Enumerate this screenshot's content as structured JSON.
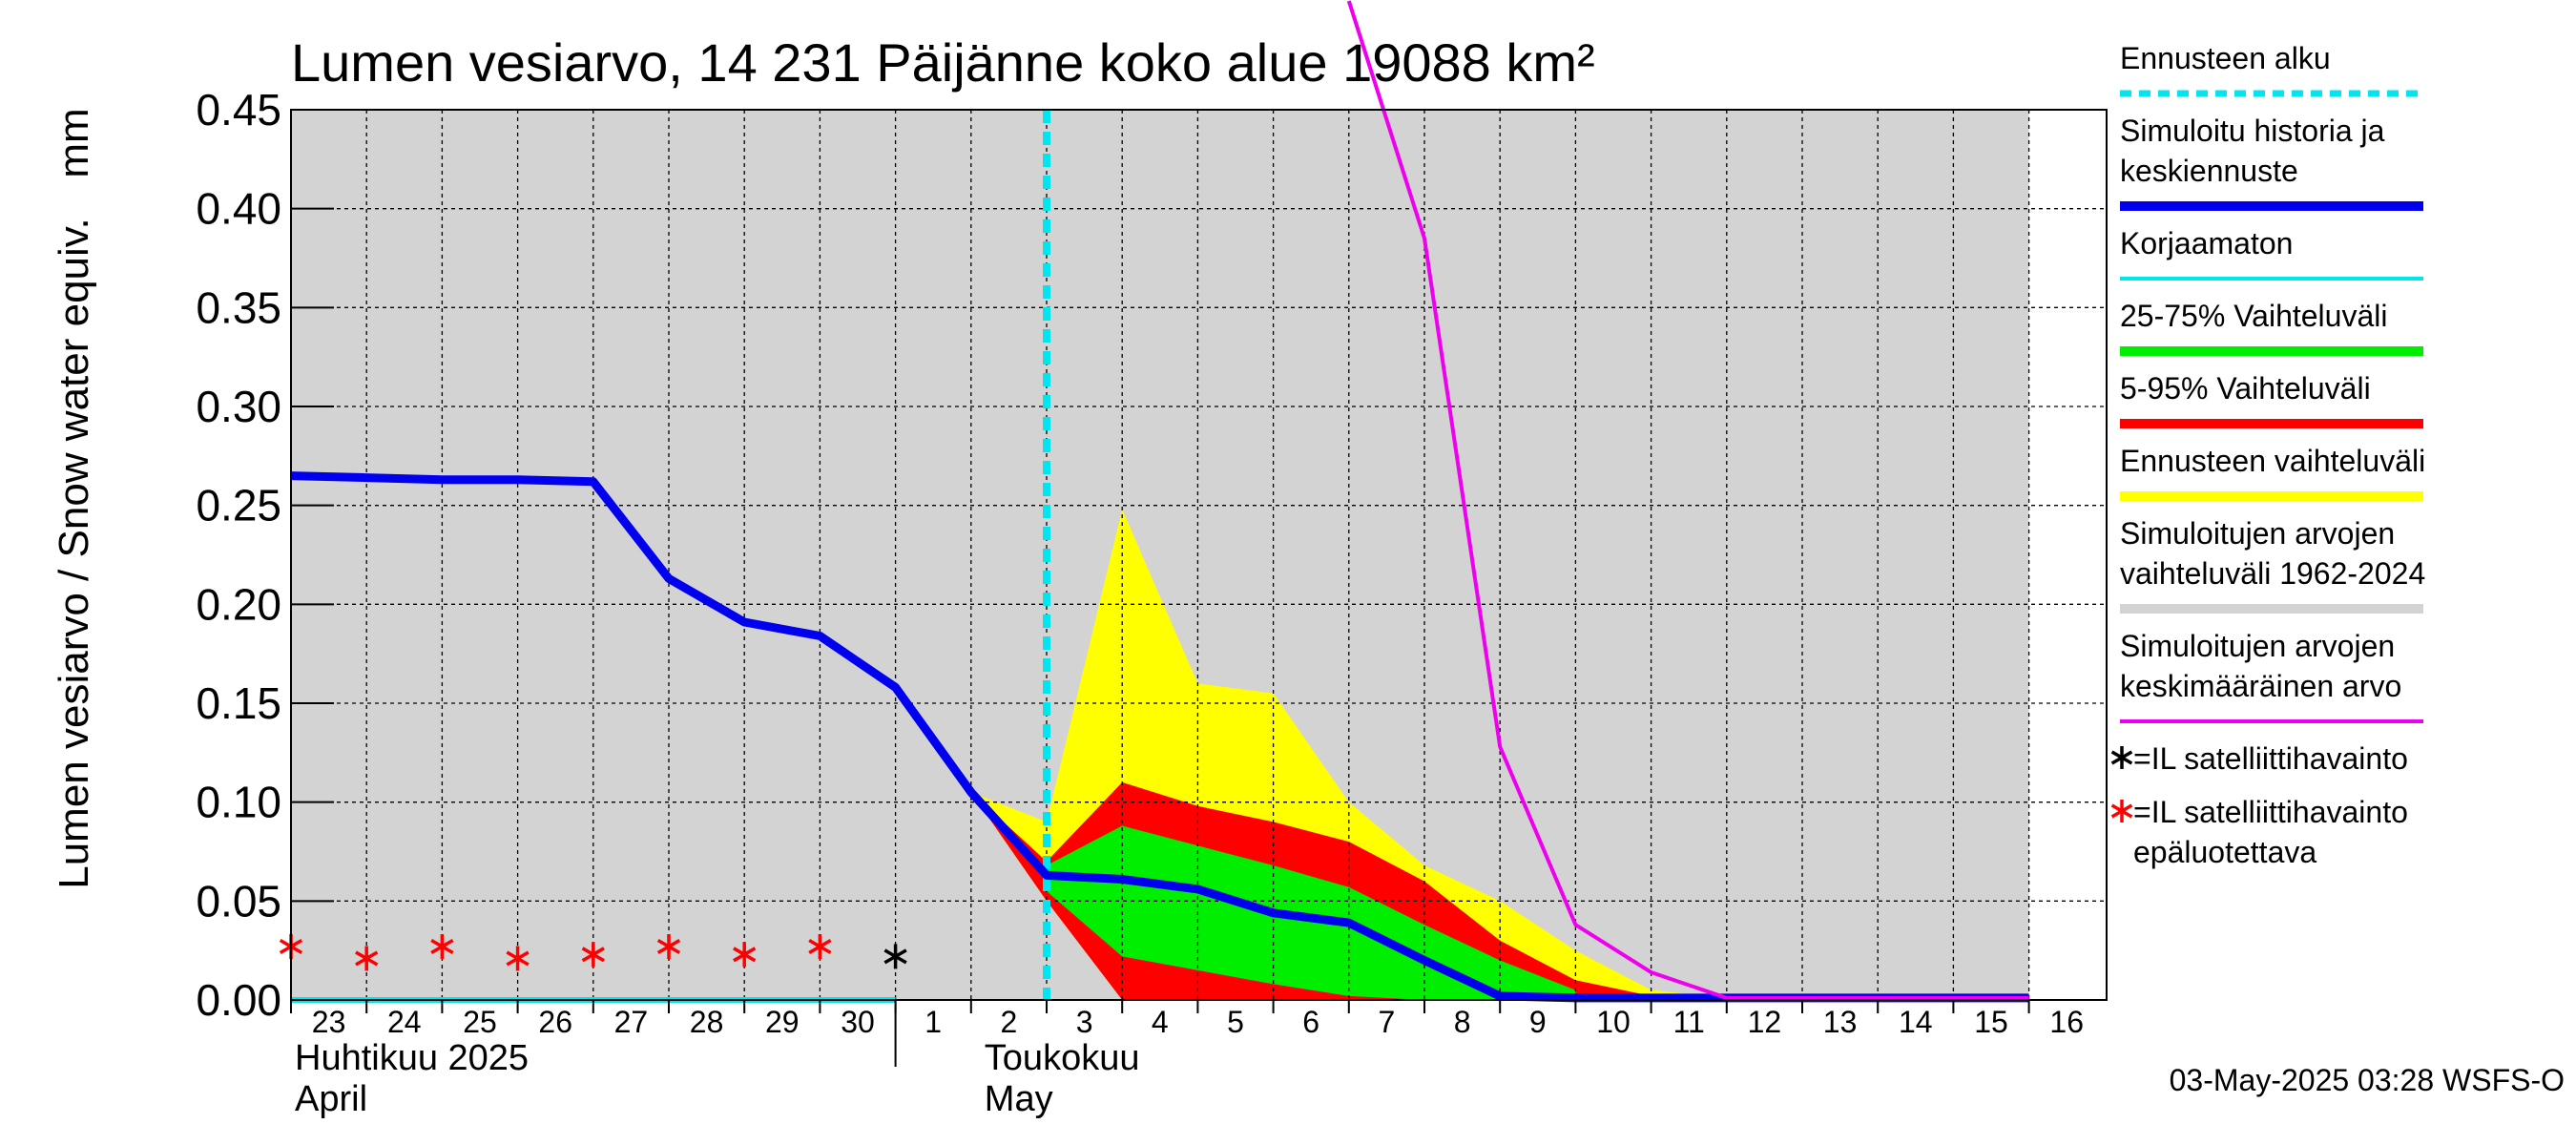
{
  "chart_data": {
    "type": "area",
    "title": "Lumen vesiarvo, 14 231 Päijänne koko alue 19088 km²",
    "ylabel": "Lumen vesiarvo / Snow water equiv.",
    "ylabel_unit": "mm",
    "ylim": [
      0,
      0.45
    ],
    "y_ticks": [
      "0.00",
      "0.05",
      "0.10",
      "0.15",
      "0.20",
      "0.25",
      "0.30",
      "0.35",
      "0.40",
      "0.45"
    ],
    "x_ticks": [
      "23",
      "24",
      "25",
      "26",
      "27",
      "28",
      "29",
      "30",
      "1",
      "2",
      "3",
      "4",
      "5",
      "6",
      "7",
      "8",
      "9",
      "10",
      "11",
      "12",
      "13",
      "14",
      "15",
      "16"
    ],
    "x_dates": [
      "2025-04-23",
      "2025-04-24",
      "2025-04-25",
      "2025-04-26",
      "2025-04-27",
      "2025-04-28",
      "2025-04-29",
      "2025-04-30",
      "2025-05-01",
      "2025-05-02",
      "2025-05-03",
      "2025-05-04",
      "2025-05-05",
      "2025-05-06",
      "2025-05-07",
      "2025-05-08",
      "2025-05-09",
      "2025-05-10",
      "2025-05-11",
      "2025-05-12",
      "2025-05-13",
      "2025-05-14",
      "2025-05-15",
      "2025-05-16"
    ],
    "month_labels": [
      {
        "fi": "Huhtikuu  2025",
        "en": "April"
      },
      {
        "fi": "Toukokuu",
        "en": "May"
      }
    ],
    "grid": true,
    "legend_position": "right",
    "forecast_start": "2025-05-03",
    "series": [
      {
        "name": "Simuloitu historia ja keskiennuste",
        "color": "#0000ee",
        "x": [
          "2025-04-23",
          "2025-04-24",
          "2025-04-25",
          "2025-04-26",
          "2025-04-27",
          "2025-04-28",
          "2025-04-29",
          "2025-04-30",
          "2025-05-01",
          "2025-05-02",
          "2025-05-03",
          "2025-05-04",
          "2025-05-05",
          "2025-05-06",
          "2025-05-07",
          "2025-05-08",
          "2025-05-09",
          "2025-05-10",
          "2025-05-11",
          "2025-05-12",
          "2025-05-16"
        ],
        "y": [
          0.265,
          0.264,
          0.263,
          0.263,
          0.262,
          0.213,
          0.191,
          0.184,
          0.158,
          0.105,
          0.063,
          0.061,
          0.056,
          0.044,
          0.039,
          0.02,
          0.002,
          0.001,
          0.001,
          0.001,
          0.001
        ]
      },
      {
        "name": "Korjaamaton",
        "color": "#00e5ee",
        "x": [
          "2025-04-23",
          "2025-04-25",
          "2025-05-01"
        ],
        "y": [
          0.0,
          0.0,
          0.0
        ]
      },
      {
        "name": "Simuloitujen arvojen keskimääräinen arvo",
        "color": "#ee00ee",
        "x": [
          "2025-05-07",
          "2025-05-08",
          "2025-05-09",
          "2025-05-10",
          "2025-05-11",
          "2025-05-12",
          "2025-05-16"
        ],
        "y": [
          0.505,
          0.385,
          0.128,
          0.038,
          0.014,
          0.001,
          0.001
        ]
      }
    ],
    "bands": [
      {
        "name": "Simuloitujen arvojen vaihteluväli 1962-2024",
        "color": "#d3d3d3",
        "x": [
          "2025-04-23",
          "2025-05-16"
        ],
        "low": [
          0,
          0
        ],
        "high": [
          0.45,
          0.45
        ]
      },
      {
        "name": "Ennusteen vaihteluväli",
        "color": "#ffff00",
        "x": [
          "2025-05-02",
          "2025-05-03",
          "2025-05-04",
          "2025-05-05",
          "2025-05-06",
          "2025-05-07",
          "2025-05-08",
          "2025-05-09",
          "2025-05-10",
          "2025-05-11",
          "2025-05-12"
        ],
        "low": [
          0.105,
          0.05,
          0.0,
          0.0,
          0.0,
          0.0,
          0.0,
          0.0,
          0.0,
          0.0,
          0.0
        ],
        "high": [
          0.105,
          0.09,
          0.248,
          0.16,
          0.155,
          0.1,
          0.068,
          0.05,
          0.025,
          0.005,
          0.001
        ]
      },
      {
        "name": "5-95% Vaihteluväli",
        "color": "#ff0000",
        "x": [
          "2025-05-02",
          "2025-05-03",
          "2025-05-04",
          "2025-05-05",
          "2025-05-06",
          "2025-05-07",
          "2025-05-08",
          "2025-05-09",
          "2025-05-10",
          "2025-05-11"
        ],
        "low": [
          0.105,
          0.05,
          0.0,
          0.0,
          0.0,
          0.0,
          0.0,
          0.0,
          0.0,
          0.0
        ],
        "high": [
          0.105,
          0.07,
          0.11,
          0.098,
          0.09,
          0.08,
          0.06,
          0.03,
          0.01,
          0.002
        ]
      },
      {
        "name": "25-75% Vaihteluväli",
        "color": "#00ee00",
        "x": [
          "2025-05-03",
          "2025-05-04",
          "2025-05-05",
          "2025-05-06",
          "2025-05-07",
          "2025-05-08",
          "2025-05-09",
          "2025-05-10"
        ],
        "low": [
          0.055,
          0.022,
          0.015,
          0.008,
          0.002,
          0.0,
          0.0,
          0.0
        ],
        "high": [
          0.068,
          0.088,
          0.078,
          0.068,
          0.057,
          0.038,
          0.02,
          0.005
        ]
      }
    ],
    "observations": [
      {
        "name": "=IL satelliittihavainto",
        "marker": "*",
        "color": "#000000",
        "x": [
          "2025-05-01"
        ],
        "y": [
          0.022
        ]
      },
      {
        "name": "=IL satelliittihavainto epäluotettava",
        "marker": "*",
        "color": "#ff0000",
        "x": [
          "2025-04-23",
          "2025-04-24",
          "2025-04-25",
          "2025-04-26",
          "2025-04-27",
          "2025-04-28",
          "2025-04-29",
          "2025-04-30"
        ],
        "y": [
          0.027,
          0.021,
          0.027,
          0.021,
          0.023,
          0.027,
          0.023,
          0.027
        ]
      }
    ],
    "legend": [
      {
        "label": "Ennusteen alku",
        "color": "#00e5ee",
        "style": "dashed"
      },
      {
        "label": "Simuloitu historia ja keskiennuste",
        "color": "#0000ee",
        "style": "thick"
      },
      {
        "label": "Korjaamaton",
        "color": "#00e5ee",
        "style": "line"
      },
      {
        "label": "25-75% Vaihteluväli",
        "color": "#00ee00",
        "style": "thick"
      },
      {
        "label": "5-95% Vaihteluväli",
        "color": "#ff0000",
        "style": "thick"
      },
      {
        "label": "Ennusteen vaihteluväli",
        "color": "#ffff00",
        "style": "thick"
      },
      {
        "label": "Simuloitujen arvojen vaihteluväli 1962-2024",
        "color": "#d3d3d3",
        "style": "thick"
      },
      {
        "label": "Simuloitujen arvojen keskimääräinen arvo",
        "color": "#ee00ee",
        "style": "line"
      },
      {
        "label": "=IL satelliittihavainto",
        "color": "#000000",
        "style": "marker"
      },
      {
        "label": "=IL satelliittihavainto epäluotettava",
        "color": "#ff0000",
        "style": "marker"
      }
    ],
    "footer": "03-May-2025 03:28 WSFS-O"
  }
}
